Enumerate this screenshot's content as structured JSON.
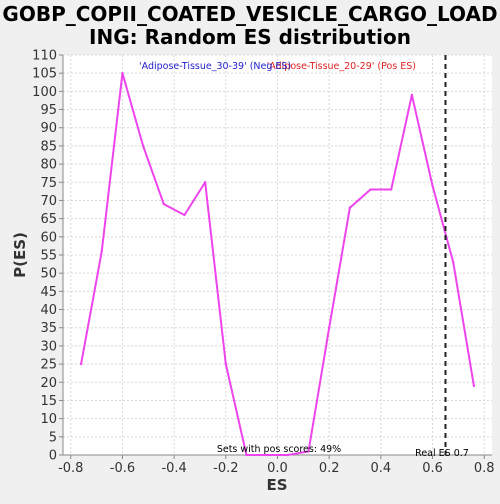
{
  "chart_data": {
    "type": "line",
    "title_line1": "GOBP_COPII_COATED_VESICLE_CARGO_LOAD",
    "title_line2": "ING: Random ES distribution",
    "xlabel": "ES",
    "ylabel": "P(ES)",
    "xlim": [
      -0.83,
      0.83
    ],
    "ylim": [
      0,
      110
    ],
    "xticks": [
      -0.8,
      -0.6,
      -0.4,
      -0.2,
      0.0,
      0.2,
      0.4,
      0.6,
      0.8
    ],
    "xtick_labels": [
      "-0.8",
      "-0.6",
      "-0.4",
      "-0.2",
      "0.0",
      "0.2",
      "0.4",
      "0.6",
      "0.8"
    ],
    "yticks": [
      0,
      5,
      10,
      15,
      20,
      25,
      30,
      35,
      40,
      45,
      50,
      55,
      60,
      65,
      70,
      75,
      80,
      85,
      90,
      95,
      100,
      105,
      110
    ],
    "grid": true,
    "legend_neg": "'Adipose-Tissue_30-39' (Neg ES)",
    "legend_pos": "'Adipose-Tissue_20-29' (Pos ES)",
    "series": [
      {
        "color": "#ee44ee",
        "x": [
          -0.76,
          -0.68,
          -0.6,
          -0.52,
          -0.44,
          -0.36,
          -0.28,
          -0.2,
          -0.12,
          -0.04,
          0.04,
          0.12,
          0.2,
          0.28,
          0.36,
          0.44,
          0.52,
          0.6,
          0.68,
          0.76
        ],
        "y": [
          25,
          56,
          105,
          85,
          69,
          66,
          75,
          25,
          0,
          0,
          0,
          1,
          35,
          68,
          73,
          73,
          99,
          74,
          53,
          19
        ]
      }
    ],
    "real_es": 0.65,
    "real_es_label": "Real ES 0.7",
    "pos_scores_label": "Sets with pos scores: 49%"
  }
}
